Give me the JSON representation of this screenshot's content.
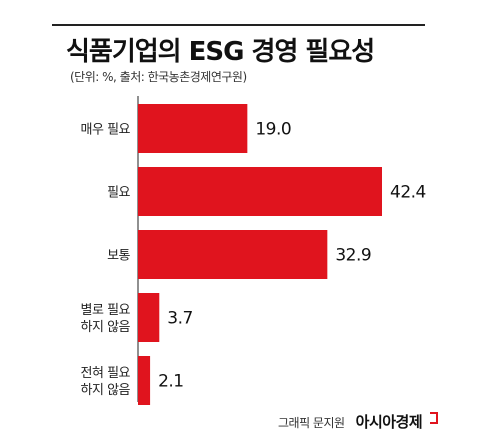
{
  "chart_data": {
    "type": "bar",
    "orientation": "horizontal",
    "title": "식품기업의 ESG 경영 필요성",
    "subtitle": "(단위: %, 출처: 한국농촌경제연구원)",
    "categories": [
      "매우 필요",
      "필요",
      "보통",
      "별로 필요|하지 않음",
      "전혀 필요|하지 않음"
    ],
    "values": [
      19.0,
      42.4,
      32.9,
      3.7,
      2.1
    ],
    "value_labels": [
      "19.0",
      "42.4",
      "32.9",
      "3.7",
      "2.1"
    ],
    "bar_color": "#e0141e",
    "xlim": [
      0,
      42.4
    ],
    "grid": false,
    "legend": "none"
  },
  "credit": {
    "text": "그래픽 문지원",
    "brand": "아시아경제",
    "brand_mark_color": "#e0141e"
  }
}
